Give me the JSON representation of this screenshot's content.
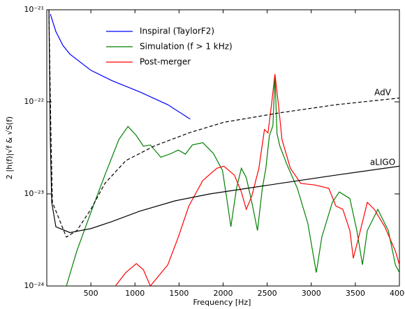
{
  "chart_data": {
    "type": "line",
    "log_y": true,
    "x_label": "Frequency [Hz]",
    "y_label": "2 |h(f)|√f & √S(f)",
    "xlim": [
      0,
      4000
    ],
    "xticks": [
      500,
      1000,
      1500,
      2000,
      2500,
      3000,
      3500,
      4000
    ],
    "ylim": [
      1e-24,
      1e-21
    ],
    "yticks": [
      {
        "value": 1e-24,
        "label": "10⁻²⁴"
      },
      {
        "value": 1e-23,
        "label": "10⁻²³"
      },
      {
        "value": 1e-22,
        "label": "10⁻²²"
      },
      {
        "value": 1e-21,
        "label": "10⁻²¹"
      }
    ],
    "legend": "upper center",
    "annotations": [
      "AdV",
      "aLIGO"
    ],
    "series": [
      {
        "name": "Inspiral (TaylorF2)",
        "color": "#0000ff",
        "x": [
          40,
          103,
          183,
          262,
          500,
          738,
          1056,
          1373,
          1627
        ],
        "values": [
          9e-22,
          5.8e-22,
          4.1e-22,
          3.3e-22,
          2.2e-22,
          1.7e-22,
          1.28e-22,
          9.3e-23,
          6.5e-23
        ]
      },
      {
        "name": "Simulation (f > 1 kHz)",
        "color": "#008000",
        "x": [
          222,
          341,
          500,
          659,
          818,
          921,
          1016,
          1096,
          1175,
          1294,
          1413,
          1492,
          1572,
          1651,
          1770,
          1890,
          1993,
          2048,
          2088,
          2152,
          2207,
          2263,
          2326,
          2390,
          2445,
          2485,
          2525,
          2565,
          2588,
          2612,
          2644,
          2723,
          2842,
          2961,
          3057,
          3120,
          3239,
          3318,
          3438,
          3517,
          3581,
          3636,
          3755,
          3874,
          3954,
          4000
        ],
        "values": [
          1e-24,
          2.4e-24,
          6.3e-24,
          1.6e-23,
          3.9e-23,
          5.4e-23,
          4.3e-23,
          3.3e-23,
          3.4e-23,
          2.5e-23,
          2.75e-23,
          3e-23,
          2.7e-23,
          3.4e-23,
          3.6e-23,
          2.75e-23,
          1.8e-23,
          8.1e-24,
          4.4e-24,
          1.15e-23,
          1.9e-23,
          1.5e-23,
          8.1e-24,
          4e-24,
          1.15e-23,
          1.9e-23,
          4.3e-23,
          5.5e-23,
          1.9e-22,
          4.5e-23,
          3.3e-23,
          2.1e-23,
          1.15e-23,
          4.8e-24,
          1.4e-24,
          3.4e-24,
          8.1e-24,
          1.05e-23,
          8.9e-24,
          4e-24,
          1.7e-24,
          4e-24,
          6.8e-24,
          4e-24,
          1.7e-24,
          1.4e-24
        ]
      },
      {
        "name": "Post-merger",
        "color": "#ff0000",
        "x": [
          778,
          897,
          1016,
          1096,
          1175,
          1373,
          1492,
          1612,
          1770,
          1929,
          2009,
          2128,
          2207,
          2263,
          2326,
          2406,
          2469,
          2509,
          2549,
          2588,
          2628,
          2668,
          2763,
          2882,
          3040,
          3199,
          3279,
          3358,
          3438,
          3477,
          3557,
          3636,
          3715,
          3834,
          3954,
          4000
        ],
        "values": [
          1e-24,
          1.4e-24,
          1.75e-24,
          1.5e-24,
          1e-24,
          1.7e-24,
          3.4e-24,
          7.4e-24,
          1.4e-23,
          1.9e-23,
          2e-23,
          1.6e-23,
          1.05e-23,
          6.8e-24,
          9.5e-24,
          1.9e-23,
          5e-23,
          4.6e-23,
          9.3e-23,
          2e-22,
          9.3e-23,
          3.9e-23,
          1.9e-23,
          1.3e-23,
          1.25e-23,
          1.15e-23,
          7.4e-24,
          6.8e-24,
          4e-24,
          2e-24,
          4e-24,
          8.1e-24,
          6.8e-24,
          4.4e-24,
          2.4e-24,
          1.7e-24
        ]
      },
      {
        "color": "#000000",
        "dashed": true,
        "x": [
          24,
          48,
          64,
          222,
          341,
          500,
          659,
          897,
          1215,
          1612,
          2009,
          2644,
          3279,
          4000
        ],
        "values": [
          1e-21,
          3.9e-23,
          8.1e-24,
          3.4e-24,
          4e-24,
          6.8e-24,
          1.3e-23,
          2.3e-23,
          3.3e-23,
          4.6e-23,
          6e-23,
          7.6e-23,
          9.3e-23,
          1.1e-22
        ]
      },
      {
        "color": "#000000",
        "x": [
          24,
          40,
          56,
          103,
          262,
          500,
          738,
          1056,
          1453,
          1850,
          2644,
          3279,
          4000
        ],
        "values": [
          1e-21,
          3.9e-23,
          8.1e-24,
          4.4e-24,
          3.8e-24,
          4.2e-24,
          5e-24,
          6.5e-24,
          8.4e-24,
          1e-23,
          1.3e-23,
          1.6e-23,
          2e-23
        ]
      }
    ]
  }
}
